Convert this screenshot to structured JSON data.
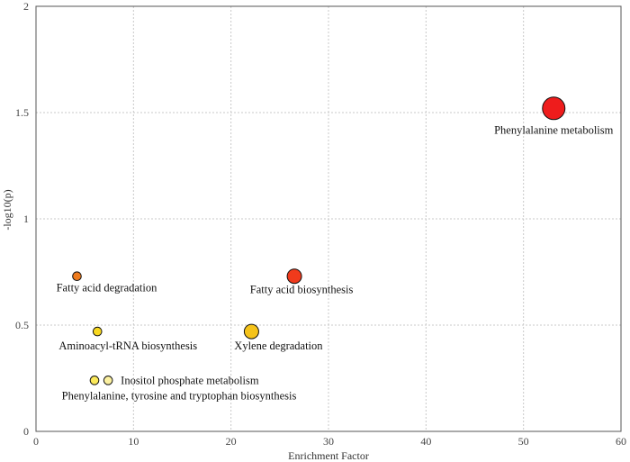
{
  "chart_data": {
    "type": "scatter",
    "title": "",
    "xlabel": "Enrichment Factor",
    "ylabel": "-log10(p)",
    "xlim": [
      0,
      60
    ],
    "ylim": [
      0,
      2
    ],
    "xticks": [
      "0",
      "10",
      "20",
      "30",
      "40",
      "50",
      "60"
    ],
    "yticks": [
      "0",
      "0.5",
      "1",
      "1.5",
      "2"
    ],
    "grid": true,
    "points": [
      {
        "label": "Phenylalanine metabolism",
        "x": 53.1,
        "y": 1.52,
        "color": "#ee1c1c",
        "size": 3
      },
      {
        "label": "Fatty acid biosynthesis",
        "x": 26.5,
        "y": 0.73,
        "color": "#f03a1c",
        "size": 2
      },
      {
        "label": "Fatty acid degradation",
        "x": 4.2,
        "y": 0.73,
        "color": "#ef7c1e",
        "size": 1
      },
      {
        "label": "Xylene degradation",
        "x": 22.1,
        "y": 0.47,
        "color": "#f5c31a",
        "size": 2
      },
      {
        "label": "Aminoacyl-tRNA biosynthesis",
        "x": 6.3,
        "y": 0.47,
        "color": "#f8d820",
        "size": 1
      },
      {
        "label": "Inositol phosphate metabolism",
        "x": 7.4,
        "y": 0.24,
        "color": "#fbf0a0",
        "size": 1
      },
      {
        "label": "Phenylalanine, tyrosine and tryptophan biosynthesis",
        "x": 6.0,
        "y": 0.24,
        "color": "#fbe95a",
        "size": 1
      }
    ]
  }
}
